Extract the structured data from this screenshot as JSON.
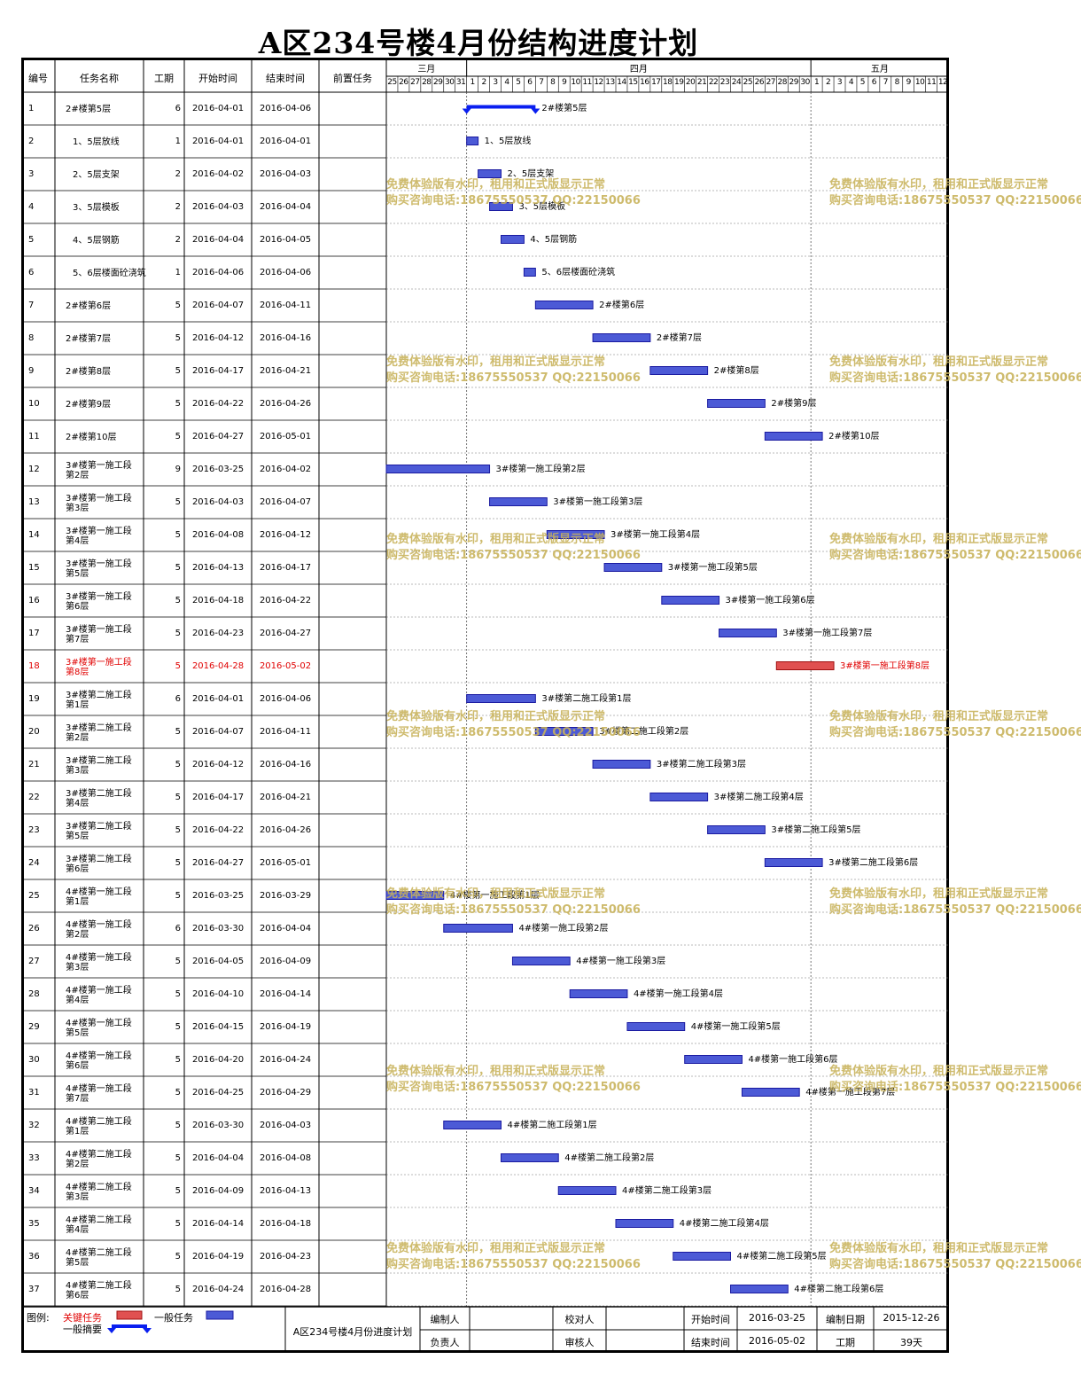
{
  "title": "A区234号楼4月份结构进度计划",
  "columns": {
    "id": "编号",
    "name": "任务名称",
    "dur": "工期",
    "start": "开始时间",
    "end": "结束时间",
    "pred": "前置任务"
  },
  "months": [
    "三月",
    "四月",
    "五月"
  ],
  "day_labels": [
    "25",
    "26",
    "27",
    "28",
    "29",
    "30",
    "31",
    "1",
    "2",
    "3",
    "4",
    "5",
    "6",
    "7",
    "8",
    "9",
    "10",
    "11",
    "12",
    "13",
    "14",
    "15",
    "16",
    "17",
    "18",
    "19",
    "20",
    "21",
    "22",
    "23",
    "24",
    "25",
    "26",
    "27",
    "28",
    "29",
    "30",
    "1",
    "2",
    "3",
    "4",
    "5",
    "6",
    "7",
    "8",
    "9",
    "10",
    "11",
    "12"
  ],
  "tasks": [
    {
      "id": "1",
      "name": "2#楼第5层",
      "dur": "6",
      "start": "2016-04-01",
      "end": "2016-04-06",
      "type": "summary",
      "indent": false
    },
    {
      "id": "2",
      "name": "1、5层放线",
      "dur": "1",
      "start": "2016-04-01",
      "end": "2016-04-01",
      "type": "normal",
      "indent": true
    },
    {
      "id": "3",
      "name": "2、5层支架",
      "dur": "2",
      "start": "2016-04-02",
      "end": "2016-04-03",
      "type": "normal",
      "indent": true
    },
    {
      "id": "4",
      "name": "3、5层模板",
      "dur": "2",
      "start": "2016-04-03",
      "end": "2016-04-04",
      "type": "normal",
      "indent": true
    },
    {
      "id": "5",
      "name": "4、5层钢筋",
      "dur": "2",
      "start": "2016-04-04",
      "end": "2016-04-05",
      "type": "normal",
      "indent": true
    },
    {
      "id": "6",
      "name": "5、6层楼面砼浇筑",
      "dur": "1",
      "start": "2016-04-06",
      "end": "2016-04-06",
      "type": "normal",
      "indent": true
    },
    {
      "id": "7",
      "name": "2#楼第6层",
      "dur": "5",
      "start": "2016-04-07",
      "end": "2016-04-11",
      "type": "normal",
      "indent": false
    },
    {
      "id": "8",
      "name": "2#楼第7层",
      "dur": "5",
      "start": "2016-04-12",
      "end": "2016-04-16",
      "type": "normal",
      "indent": false
    },
    {
      "id": "9",
      "name": "2#楼第8层",
      "dur": "5",
      "start": "2016-04-17",
      "end": "2016-04-21",
      "type": "normal",
      "indent": false
    },
    {
      "id": "10",
      "name": "2#楼第9层",
      "dur": "5",
      "start": "2016-04-22",
      "end": "2016-04-26",
      "type": "normal",
      "indent": false
    },
    {
      "id": "11",
      "name": "2#楼第10层",
      "dur": "5",
      "start": "2016-04-27",
      "end": "2016-05-01",
      "type": "normal",
      "indent": false
    },
    {
      "id": "12",
      "name": "3#楼第一施工段第2层",
      "dur": "9",
      "start": "2016-03-25",
      "end": "2016-04-02",
      "type": "normal",
      "indent": false
    },
    {
      "id": "13",
      "name": "3#楼第一施工段第3层",
      "dur": "5",
      "start": "2016-04-03",
      "end": "2016-04-07",
      "type": "normal",
      "indent": false
    },
    {
      "id": "14",
      "name": "3#楼第一施工段第4层",
      "dur": "5",
      "start": "2016-04-08",
      "end": "2016-04-12",
      "type": "normal",
      "indent": false
    },
    {
      "id": "15",
      "name": "3#楼第一施工段第5层",
      "dur": "5",
      "start": "2016-04-13",
      "end": "2016-04-17",
      "type": "normal",
      "indent": false
    },
    {
      "id": "16",
      "name": "3#楼第一施工段第6层",
      "dur": "5",
      "start": "2016-04-18",
      "end": "2016-04-22",
      "type": "normal",
      "indent": false
    },
    {
      "id": "17",
      "name": "3#楼第一施工段第7层",
      "dur": "5",
      "start": "2016-04-23",
      "end": "2016-04-27",
      "type": "normal",
      "indent": false
    },
    {
      "id": "18",
      "name": "3#楼第一施工段第8层",
      "dur": "5",
      "start": "2016-04-28",
      "end": "2016-05-02",
      "type": "critical",
      "indent": false
    },
    {
      "id": "19",
      "name": "3#楼第二施工段第1层",
      "dur": "6",
      "start": "2016-04-01",
      "end": "2016-04-06",
      "type": "normal",
      "indent": false
    },
    {
      "id": "20",
      "name": "3#楼第二施工段第2层",
      "dur": "5",
      "start": "2016-04-07",
      "end": "2016-04-11",
      "type": "normal",
      "indent": false
    },
    {
      "id": "21",
      "name": "3#楼第二施工段第3层",
      "dur": "5",
      "start": "2016-04-12",
      "end": "2016-04-16",
      "type": "normal",
      "indent": false
    },
    {
      "id": "22",
      "name": "3#楼第二施工段第4层",
      "dur": "5",
      "start": "2016-04-17",
      "end": "2016-04-21",
      "type": "normal",
      "indent": false
    },
    {
      "id": "23",
      "name": "3#楼第二施工段第5层",
      "dur": "5",
      "start": "2016-04-22",
      "end": "2016-04-26",
      "type": "normal",
      "indent": false
    },
    {
      "id": "24",
      "name": "3#楼第二施工段第6层",
      "dur": "5",
      "start": "2016-04-27",
      "end": "2016-05-01",
      "type": "normal",
      "indent": false
    },
    {
      "id": "25",
      "name": "4#楼第一施工段第1层",
      "dur": "5",
      "start": "2016-03-25",
      "end": "2016-03-29",
      "type": "normal",
      "indent": false
    },
    {
      "id": "26",
      "name": "4#楼第一施工段第2层",
      "dur": "6",
      "start": "2016-03-30",
      "end": "2016-04-04",
      "type": "normal",
      "indent": false
    },
    {
      "id": "27",
      "name": "4#楼第一施工段第3层",
      "dur": "5",
      "start": "2016-04-05",
      "end": "2016-04-09",
      "type": "normal",
      "indent": false
    },
    {
      "id": "28",
      "name": "4#楼第一施工段第4层",
      "dur": "5",
      "start": "2016-04-10",
      "end": "2016-04-14",
      "type": "normal",
      "indent": false
    },
    {
      "id": "29",
      "name": "4#楼第一施工段第5层",
      "dur": "5",
      "start": "2016-04-15",
      "end": "2016-04-19",
      "type": "normal",
      "indent": false
    },
    {
      "id": "30",
      "name": "4#楼第一施工段第6层",
      "dur": "5",
      "start": "2016-04-20",
      "end": "2016-04-24",
      "type": "normal",
      "indent": false
    },
    {
      "id": "31",
      "name": "4#楼第一施工段第7层",
      "dur": "5",
      "start": "2016-04-25",
      "end": "2016-04-29",
      "type": "normal",
      "indent": false
    },
    {
      "id": "32",
      "name": "4#楼第二施工段第1层",
      "dur": "5",
      "start": "2016-03-30",
      "end": "2016-04-03",
      "type": "normal",
      "indent": false
    },
    {
      "id": "33",
      "name": "4#楼第二施工段第2层",
      "dur": "5",
      "start": "2016-04-04",
      "end": "2016-04-08",
      "type": "normal",
      "indent": false
    },
    {
      "id": "34",
      "name": "4#楼第二施工段第3层",
      "dur": "5",
      "start": "2016-04-09",
      "end": "2016-04-13",
      "type": "normal",
      "indent": false
    },
    {
      "id": "35",
      "name": "4#楼第二施工段第4层",
      "dur": "5",
      "start": "2016-04-14",
      "end": "2016-04-18",
      "type": "normal",
      "indent": false
    },
    {
      "id": "36",
      "name": "4#楼第二施工段第5层",
      "dur": "5",
      "start": "2016-04-19",
      "end": "2016-04-23",
      "type": "normal",
      "indent": false
    },
    {
      "id": "37",
      "name": "4#楼第二施工段第6层",
      "dur": "5",
      "start": "2016-04-24",
      "end": "2016-04-28",
      "type": "normal",
      "indent": false
    }
  ],
  "watermark": {
    "line1": "免费体验版有水印，租用和正式版显示正常",
    "line2": "购买咨询电话:18675550537 QQ:22150066"
  },
  "legend": {
    "label": "图例:",
    "critical": "关键任务",
    "normal": "一般任务",
    "summary": "一般摘要"
  },
  "footer": {
    "plan_title": "A区234号楼4月份进度计划",
    "editor_label": "编制人",
    "editor": "",
    "owner_label": "负责人",
    "owner": "",
    "checker_label": "校对人",
    "checker": "",
    "auditor_label": "审核人",
    "auditor": "",
    "start_label": "开始时间",
    "start": "2016-03-25",
    "end_label": "结束时间",
    "end": "2016-05-02",
    "date_label": "编制日期",
    "date": "2015-12-26",
    "dur_label": "工期",
    "dur": "39天"
  },
  "colors": {
    "bar_fill": "#4c5ad6",
    "bar_stroke": "#1a1aa0",
    "critical_fill": "#e05050",
    "critical_stroke": "#a01010",
    "summary": "#0a1ff0",
    "critical_text": "#e00000",
    "watermark": "#c8b25a"
  }
}
